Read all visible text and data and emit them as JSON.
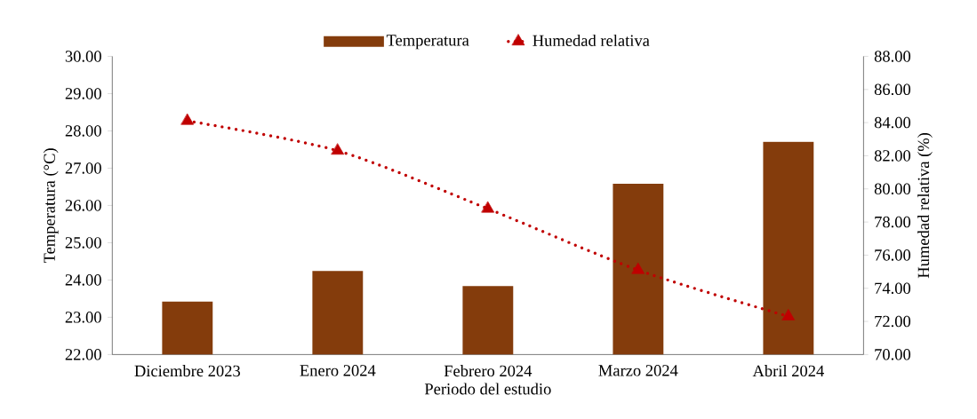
{
  "chart_data": {
    "type": "bar",
    "categories": [
      "Diciembre 2023",
      "Enero 2024",
      "Febrero 2024",
      "Marzo 2024",
      "Abril 2024"
    ],
    "series": [
      {
        "name": "Temperatura",
        "color": "#843c0c",
        "values": [
          23.42,
          24.24,
          23.84,
          26.58,
          27.71
        ]
      },
      {
        "name": "Humedad relativa",
        "type": "line",
        "axis": "y2",
        "color": "#c00000",
        "marker": "triangle",
        "line_style": "dotted",
        "values": [
          84.1,
          82.3,
          78.8,
          75.1,
          72.3
        ]
      }
    ],
    "xlabel": "Periodo del estudio",
    "ylabel": "Temperatura (°C)",
    "y2label": "Humedad relativa (%)",
    "ylim": [
      22,
      30
    ],
    "yticks": [
      {
        "value": 22,
        "label": "22.00"
      },
      {
        "value": 23,
        "label": "23.00"
      },
      {
        "value": 24,
        "label": "24.00"
      },
      {
        "value": 25,
        "label": "25.00"
      },
      {
        "value": 26,
        "label": "26.00"
      },
      {
        "value": 27,
        "label": "27.00"
      },
      {
        "value": 28,
        "label": "28.00"
      },
      {
        "value": 29,
        "label": "29.00"
      },
      {
        "value": 30,
        "label": "30.00"
      }
    ],
    "y2lim": [
      70,
      88
    ],
    "y2ticks": [
      {
        "value": 70,
        "label": "70.00"
      },
      {
        "value": 72,
        "label": "72.00"
      },
      {
        "value": 74,
        "label": "74.00"
      },
      {
        "value": 76,
        "label": "76.00"
      },
      {
        "value": 78,
        "label": "78.00"
      },
      {
        "value": 80,
        "label": "80.00"
      },
      {
        "value": 82,
        "label": "82.00"
      },
      {
        "value": 84,
        "label": "84.00"
      },
      {
        "value": 86,
        "label": "86.00"
      },
      {
        "value": 88,
        "label": "88.00"
      }
    ],
    "legend": "top"
  }
}
